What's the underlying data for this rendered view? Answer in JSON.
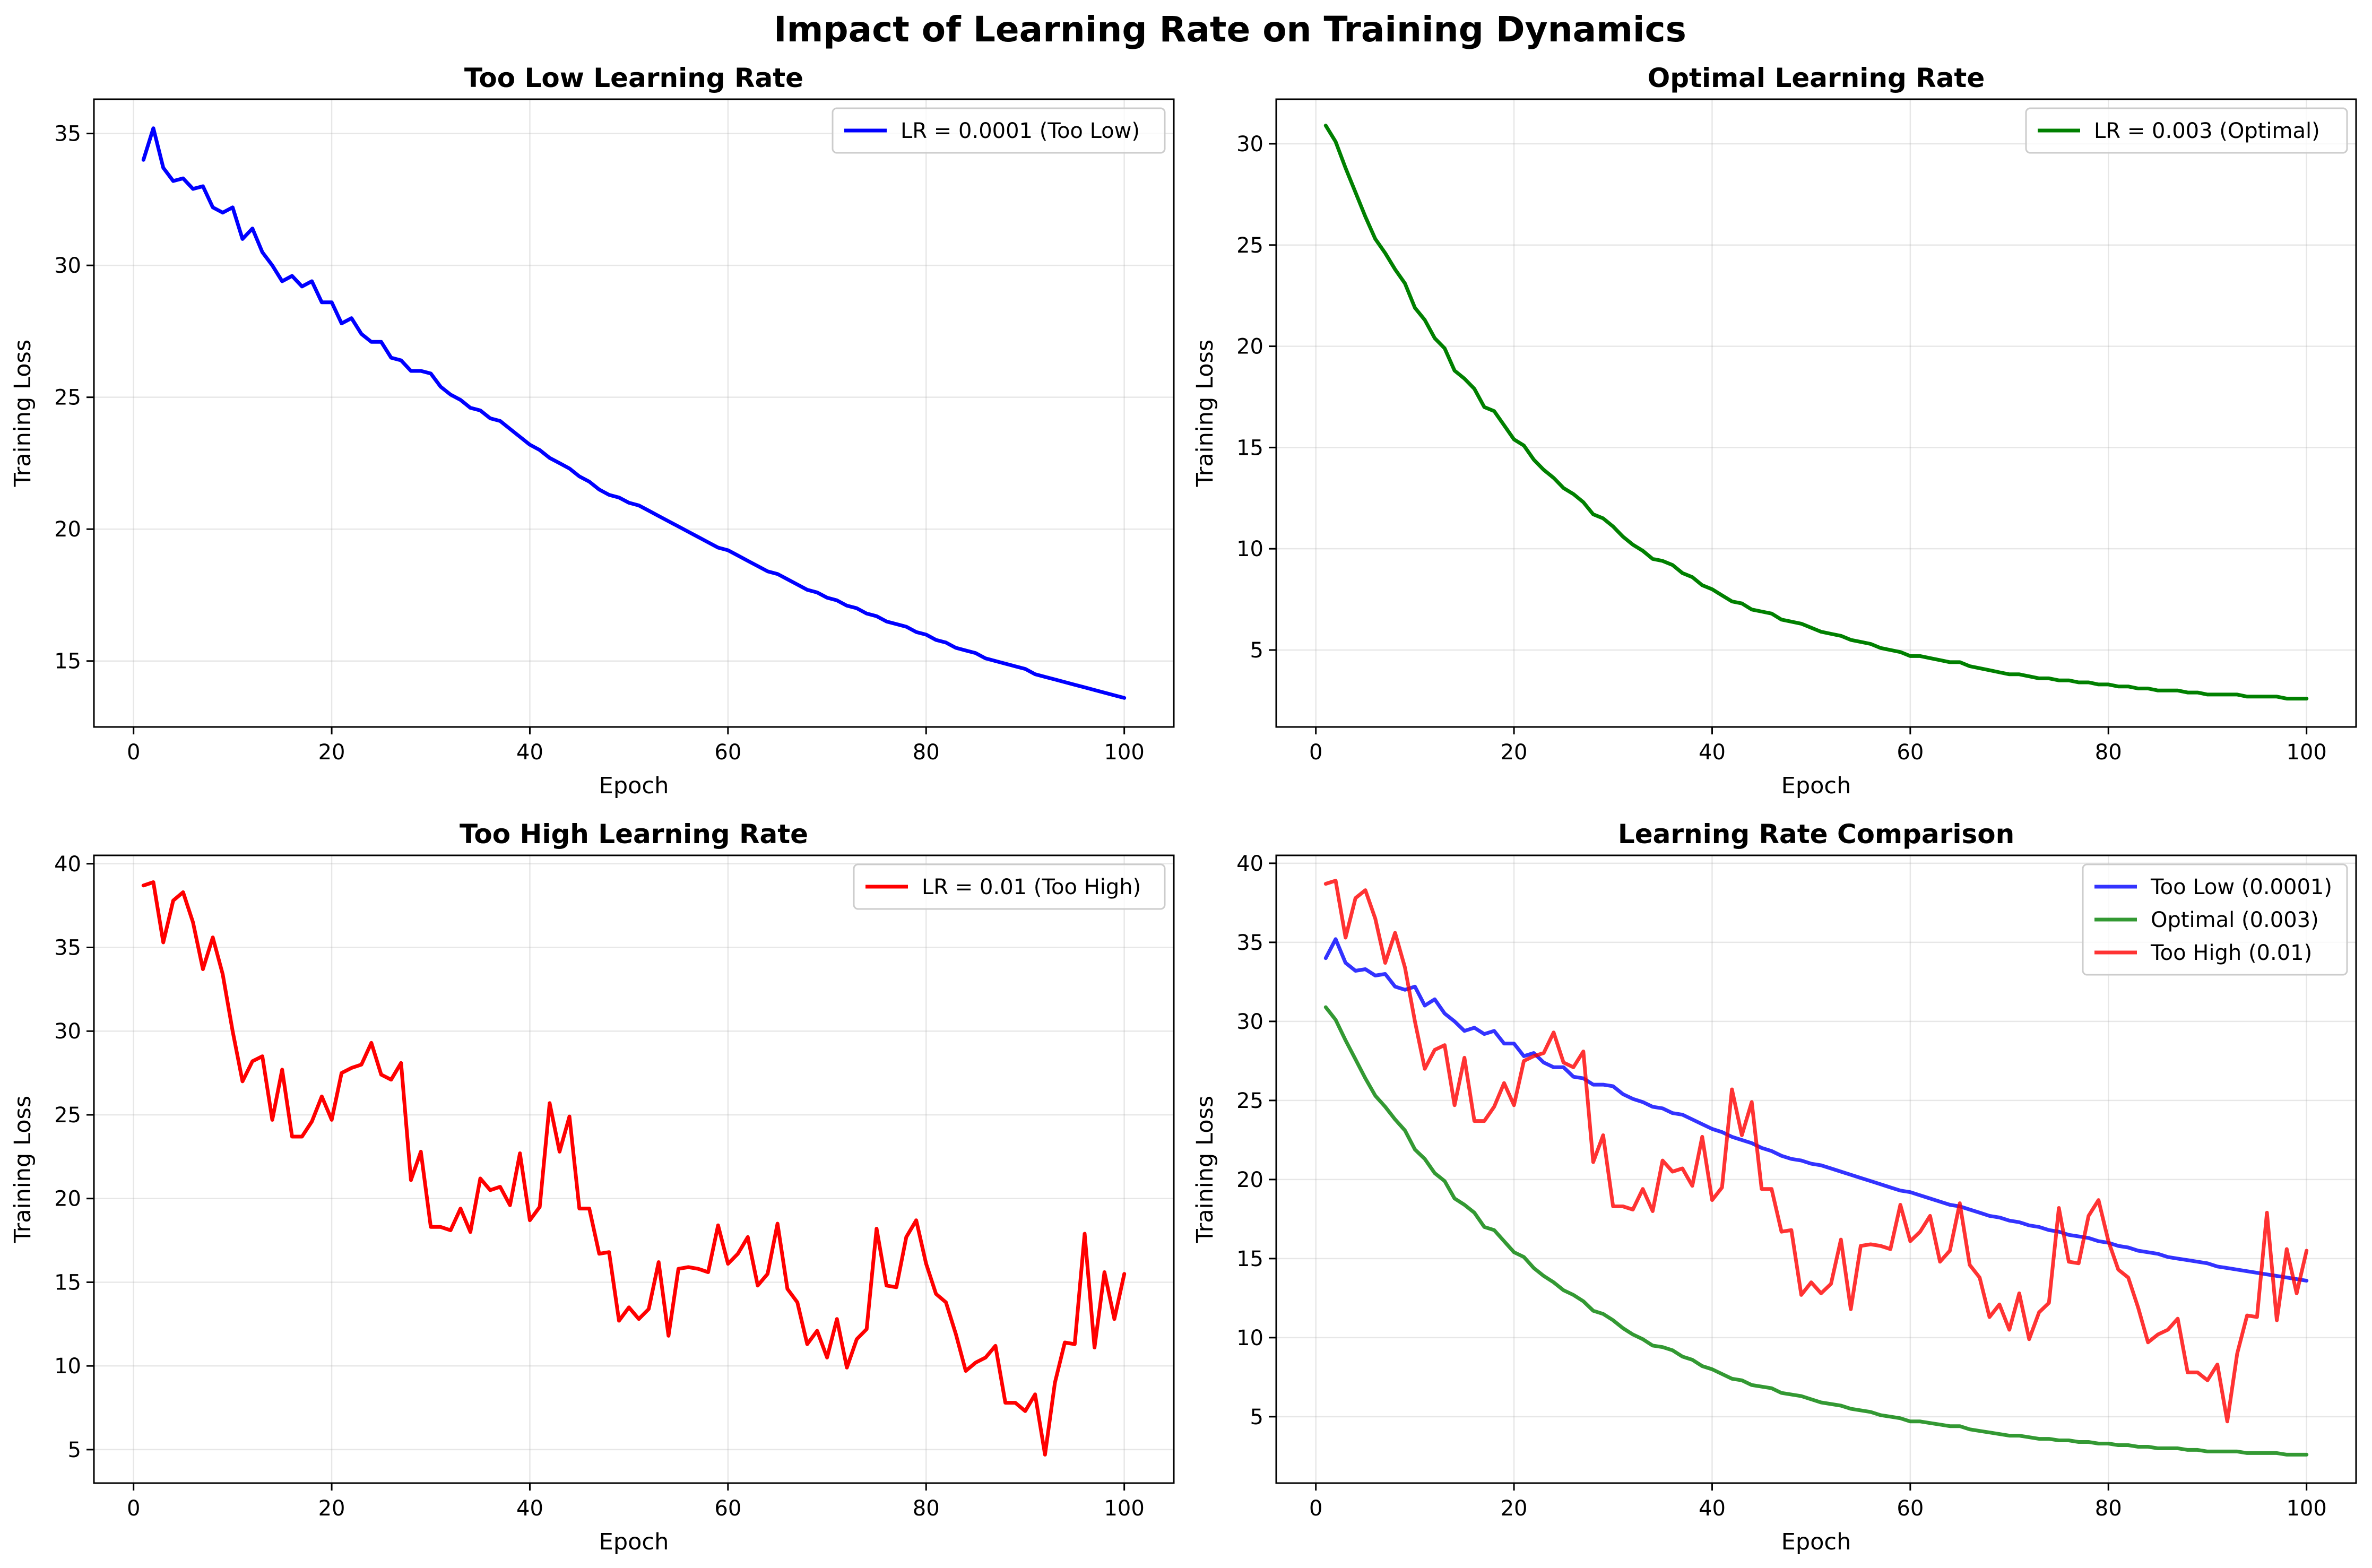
{
  "figure": {
    "title": "Impact of Learning Rate on Training Dynamics"
  },
  "colors": {
    "low": "#0000ff",
    "optimal": "#008000",
    "high": "#ff0000"
  },
  "chart_data": [
    {
      "type": "line",
      "title": "Too Low Learning Rate",
      "xlabel": "Epoch",
      "ylabel": "Training Loss",
      "xlim": [
        -4,
        105
      ],
      "ylim": [
        12.5,
        36.3
      ],
      "xticks": [
        0,
        20,
        40,
        60,
        80,
        100
      ],
      "yticks": [
        15,
        20,
        25,
        30,
        35
      ],
      "grid": true,
      "legend_position": "top-right",
      "series": [
        {
          "name": "LR = 0.0001 (Too Low)",
          "color": "#0000ff",
          "opacity": 1,
          "x": [
            1,
            2,
            3,
            4,
            5,
            6,
            7,
            8,
            9,
            10,
            11,
            12,
            13,
            14,
            15,
            16,
            17,
            18,
            19,
            20,
            21,
            22,
            23,
            24,
            25,
            26,
            27,
            28,
            29,
            30,
            31,
            32,
            33,
            34,
            35,
            36,
            37,
            38,
            39,
            40,
            41,
            42,
            43,
            44,
            45,
            46,
            47,
            48,
            49,
            50,
            51,
            52,
            53,
            54,
            55,
            56,
            57,
            58,
            59,
            60,
            61,
            62,
            63,
            64,
            65,
            66,
            67,
            68,
            69,
            70,
            71,
            72,
            73,
            74,
            75,
            76,
            77,
            78,
            79,
            80,
            81,
            82,
            83,
            84,
            85,
            86,
            87,
            88,
            89,
            90,
            91,
            92,
            93,
            94,
            95,
            96,
            97,
            98,
            99,
            100
          ],
          "values": [
            34.0,
            35.2,
            33.7,
            33.2,
            33.3,
            32.9,
            33.0,
            32.2,
            32.0,
            32.2,
            31.0,
            31.4,
            30.5,
            30.0,
            29.4,
            29.6,
            29.2,
            29.4,
            28.6,
            28.6,
            27.8,
            28.0,
            27.4,
            27.1,
            27.1,
            26.5,
            26.4,
            26.0,
            26.0,
            25.9,
            25.4,
            25.1,
            24.9,
            24.6,
            24.5,
            24.2,
            24.1,
            23.8,
            23.5,
            23.2,
            23.0,
            22.7,
            22.5,
            22.3,
            22.0,
            21.8,
            21.5,
            21.3,
            21.2,
            21.0,
            20.9,
            20.7,
            20.5,
            20.3,
            20.1,
            19.9,
            19.7,
            19.5,
            19.3,
            19.2,
            19.0,
            18.8,
            18.6,
            18.4,
            18.3,
            18.1,
            17.9,
            17.7,
            17.6,
            17.4,
            17.3,
            17.1,
            17.0,
            16.8,
            16.7,
            16.5,
            16.4,
            16.3,
            16.1,
            16.0,
            15.8,
            15.7,
            15.5,
            15.4,
            15.3,
            15.1,
            15.0,
            14.9,
            14.8,
            14.7,
            14.5,
            14.4,
            14.3,
            14.2,
            14.1,
            14.0,
            13.9,
            13.8,
            13.7,
            13.6
          ]
        }
      ]
    },
    {
      "type": "line",
      "title": "Optimal Learning Rate",
      "xlabel": "Epoch",
      "ylabel": "Training Loss",
      "xlim": [
        -4,
        105
      ],
      "ylim": [
        1.2,
        32.2
      ],
      "xticks": [
        0,
        20,
        40,
        60,
        80,
        100
      ],
      "yticks": [
        5,
        10,
        15,
        20,
        25,
        30
      ],
      "grid": true,
      "legend_position": "top-right",
      "series": [
        {
          "name": "LR = 0.003 (Optimal)",
          "color": "#008000",
          "opacity": 1,
          "x": [
            1,
            2,
            3,
            4,
            5,
            6,
            7,
            8,
            9,
            10,
            11,
            12,
            13,
            14,
            15,
            16,
            17,
            18,
            19,
            20,
            21,
            22,
            23,
            24,
            25,
            26,
            27,
            28,
            29,
            30,
            31,
            32,
            33,
            34,
            35,
            36,
            37,
            38,
            39,
            40,
            41,
            42,
            43,
            44,
            45,
            46,
            47,
            48,
            49,
            50,
            51,
            52,
            53,
            54,
            55,
            56,
            57,
            58,
            59,
            60,
            61,
            62,
            63,
            64,
            65,
            66,
            67,
            68,
            69,
            70,
            71,
            72,
            73,
            74,
            75,
            76,
            77,
            78,
            79,
            80,
            81,
            82,
            83,
            84,
            85,
            86,
            87,
            88,
            89,
            90,
            91,
            92,
            93,
            94,
            95,
            96,
            97,
            98,
            99,
            100
          ],
          "values": [
            30.9,
            30.1,
            28.8,
            27.6,
            26.4,
            25.3,
            24.6,
            23.8,
            23.1,
            21.9,
            21.3,
            20.4,
            19.9,
            18.8,
            18.4,
            17.9,
            17.0,
            16.8,
            16.1,
            15.4,
            15.1,
            14.4,
            13.9,
            13.5,
            13.0,
            12.7,
            12.3,
            11.7,
            11.5,
            11.1,
            10.6,
            10.2,
            9.9,
            9.5,
            9.4,
            9.2,
            8.8,
            8.6,
            8.2,
            8.0,
            7.7,
            7.4,
            7.3,
            7.0,
            6.9,
            6.8,
            6.5,
            6.4,
            6.3,
            6.1,
            5.9,
            5.8,
            5.7,
            5.5,
            5.4,
            5.3,
            5.1,
            5.0,
            4.9,
            4.7,
            4.7,
            4.6,
            4.5,
            4.4,
            4.4,
            4.2,
            4.1,
            4.0,
            3.9,
            3.8,
            3.8,
            3.7,
            3.6,
            3.6,
            3.5,
            3.5,
            3.4,
            3.4,
            3.3,
            3.3,
            3.2,
            3.2,
            3.1,
            3.1,
            3.0,
            3.0,
            3.0,
            2.9,
            2.9,
            2.8,
            2.8,
            2.8,
            2.8,
            2.7,
            2.7,
            2.7,
            2.7,
            2.6,
            2.6,
            2.6
          ]
        }
      ]
    },
    {
      "type": "line",
      "title": "Too High Learning Rate",
      "xlabel": "Epoch",
      "ylabel": "Training Loss",
      "xlim": [
        -4,
        105
      ],
      "ylim": [
        3.0,
        40.5
      ],
      "xticks": [
        0,
        20,
        40,
        60,
        80,
        100
      ],
      "yticks": [
        5,
        10,
        15,
        20,
        25,
        30,
        35,
        40
      ],
      "grid": true,
      "legend_position": "top-right",
      "series": [
        {
          "name": "LR = 0.01 (Too High)",
          "color": "#ff0000",
          "opacity": 1,
          "x": [
            1,
            2,
            3,
            4,
            5,
            6,
            7,
            8,
            9,
            10,
            11,
            12,
            13,
            14,
            15,
            16,
            17,
            18,
            19,
            20,
            21,
            22,
            23,
            24,
            25,
            26,
            27,
            28,
            29,
            30,
            31,
            32,
            33,
            34,
            35,
            36,
            37,
            38,
            39,
            40,
            41,
            42,
            43,
            44,
            45,
            46,
            47,
            48,
            49,
            50,
            51,
            52,
            53,
            54,
            55,
            56,
            57,
            58,
            59,
            60,
            61,
            62,
            63,
            64,
            65,
            66,
            67,
            68,
            69,
            70,
            71,
            72,
            73,
            74,
            75,
            76,
            77,
            78,
            79,
            80,
            81,
            82,
            83,
            84,
            85,
            86,
            87,
            88,
            89,
            90,
            91,
            92,
            93,
            94,
            95,
            96,
            97,
            98,
            99,
            100
          ],
          "values": [
            38.7,
            38.9,
            35.3,
            37.8,
            38.3,
            36.5,
            33.7,
            35.6,
            33.4,
            30.0,
            27.0,
            28.2,
            28.5,
            24.7,
            27.7,
            23.7,
            23.7,
            24.6,
            26.1,
            24.7,
            27.5,
            27.8,
            28.0,
            29.3,
            27.4,
            27.1,
            28.1,
            21.1,
            22.8,
            18.3,
            18.3,
            18.1,
            19.4,
            18.0,
            21.2,
            20.5,
            20.7,
            19.6,
            22.7,
            18.7,
            19.5,
            25.7,
            22.8,
            24.9,
            19.4,
            19.4,
            16.7,
            16.8,
            12.7,
            13.5,
            12.8,
            13.4,
            16.2,
            11.8,
            15.8,
            15.9,
            15.8,
            15.6,
            18.4,
            16.1,
            16.7,
            17.7,
            14.8,
            15.5,
            18.5,
            14.6,
            13.8,
            11.3,
            12.1,
            10.5,
            12.8,
            9.9,
            11.6,
            12.2,
            18.2,
            14.8,
            14.7,
            17.7,
            18.7,
            16.1,
            14.3,
            13.8,
            11.9,
            9.7,
            10.2,
            10.5,
            11.2,
            7.8,
            7.8,
            7.3,
            8.3,
            4.7,
            9.0,
            11.4,
            11.3,
            17.9,
            11.1,
            15.6,
            12.8,
            15.5
          ]
        }
      ]
    },
    {
      "type": "line",
      "title": "Learning Rate Comparison",
      "xlabel": "Epoch",
      "ylabel": "Training Loss",
      "xlim": [
        -4,
        105
      ],
      "ylim": [
        0.8,
        40.5
      ],
      "xticks": [
        0,
        20,
        40,
        60,
        80,
        100
      ],
      "yticks": [
        5,
        10,
        15,
        20,
        25,
        30,
        35,
        40
      ],
      "grid": true,
      "legend_position": "top-right",
      "series": [
        {
          "name": "Too Low (0.0001)",
          "color": "#0000ff",
          "opacity": 0.8,
          "source": 0
        },
        {
          "name": "Optimal (0.003)",
          "color": "#008000",
          "opacity": 0.8,
          "source": 1
        },
        {
          "name": "Too High (0.01)",
          "color": "#ff0000",
          "opacity": 0.8,
          "source": 2
        }
      ]
    }
  ]
}
